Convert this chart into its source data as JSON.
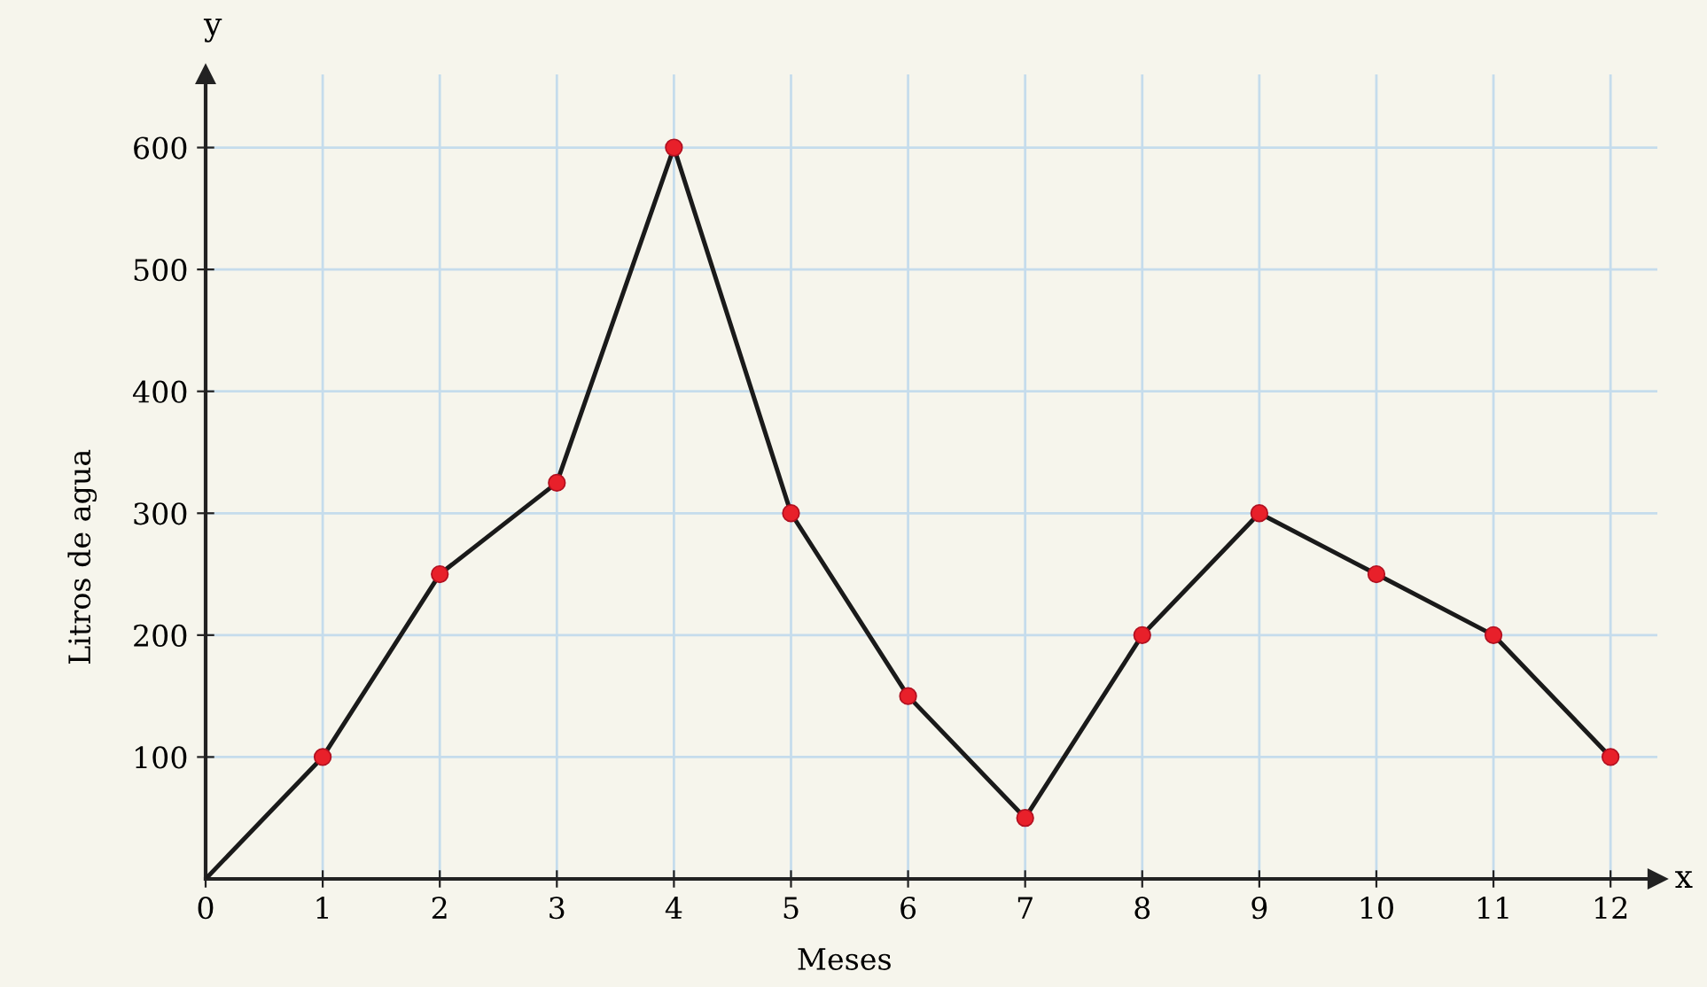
{
  "chart_data": {
    "type": "line",
    "xlabel": "Meses",
    "ylabel": "Litros de agua",
    "annotations": [
      "x",
      "y"
    ],
    "xlim": [
      0,
      12.4
    ],
    "ylim": [
      0,
      660
    ],
    "xticks": [
      0,
      1,
      2,
      3,
      4,
      5,
      6,
      7,
      8,
      9,
      10,
      11,
      12
    ],
    "yticks": [
      100,
      200,
      300,
      400,
      500,
      600
    ],
    "grid": true,
    "series": [
      {
        "color": "#1a1a1a",
        "marker": "none",
        "x": [
          0,
          1,
          2,
          3,
          4,
          5,
          6,
          7,
          8,
          9,
          10,
          11,
          12
        ],
        "values": [
          0,
          100,
          250,
          325,
          600,
          300,
          150,
          50,
          200,
          300,
          250,
          200,
          100
        ]
      },
      {
        "type": "scatter",
        "color": "#e8202a",
        "marker": "circle",
        "x": [
          1,
          2,
          3,
          4,
          5,
          6,
          7,
          8,
          9,
          10,
          11,
          12
        ],
        "values": [
          100,
          250,
          325,
          600,
          300,
          150,
          50,
          200,
          300,
          250,
          200,
          100
        ]
      }
    ]
  }
}
